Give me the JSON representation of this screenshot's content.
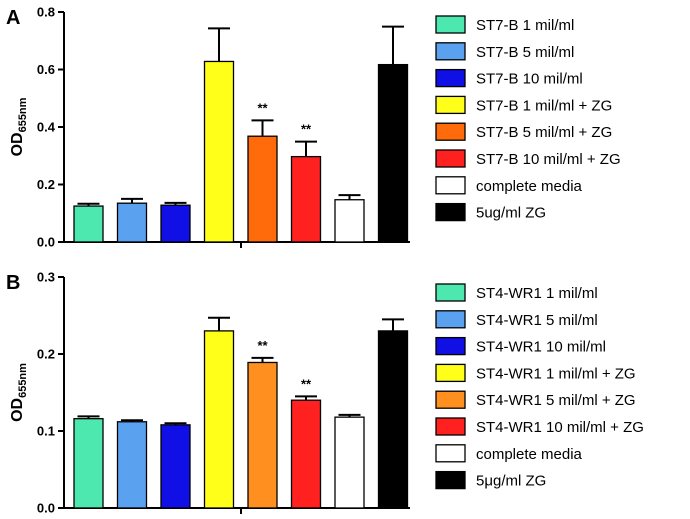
{
  "chart_data": [
    {
      "type": "bar",
      "panel": "A",
      "ylabel": "OD",
      "ylabel_sub": "655nm",
      "ylim": [
        0,
        0.8
      ],
      "yticks": [
        "0.0",
        "0.2",
        "0.4",
        "0.6",
        "0.8"
      ],
      "ytick_values": [
        0,
        0.2,
        0.4,
        0.6,
        0.8
      ],
      "legend_position": "right",
      "bars": [
        {
          "label": "ST7-B 1 mil/ml",
          "value": 0.125,
          "error": 0.008,
          "color": "#4de8b0",
          "sig": ""
        },
        {
          "label": "ST7-B 5 mil/ml",
          "value": 0.135,
          "error": 0.015,
          "color": "#5aa2f0",
          "sig": ""
        },
        {
          "label": "ST7-B 10 mil/ml",
          "value": 0.128,
          "error": 0.008,
          "color": "#1010e6",
          "sig": ""
        },
        {
          "label": "ST7-B 1 mil/ml + ZG",
          "value": 0.628,
          "error": 0.115,
          "color": "#ffff1a",
          "sig": ""
        },
        {
          "label": "ST7-B 5 mil/ml + ZG",
          "value": 0.368,
          "error": 0.055,
          "color": "#ff6a0a",
          "sig": "**"
        },
        {
          "label": "ST7-B 10 mil/ml + ZG",
          "value": 0.297,
          "error": 0.052,
          "color": "#ff2020",
          "sig": "**"
        },
        {
          "label": "complete media",
          "value": 0.147,
          "error": 0.016,
          "color": "#ffffff",
          "sig": ""
        },
        {
          "label": "5ug/ml ZG",
          "value": 0.617,
          "error": 0.132,
          "color": "#000000",
          "sig": ""
        }
      ]
    },
    {
      "type": "bar",
      "panel": "B",
      "ylabel": "OD",
      "ylabel_sub": "655nm",
      "ylim": [
        0,
        0.3
      ],
      "yticks": [
        "0.0",
        "0.1",
        "0.2",
        "0.3"
      ],
      "ytick_values": [
        0,
        0.1,
        0.2,
        0.3
      ],
      "legend_position": "right",
      "bars": [
        {
          "label": "ST4-WR1 1 mil/ml",
          "value": 0.116,
          "error": 0.003,
          "color": "#4de8b0",
          "sig": ""
        },
        {
          "label": "ST4-WR1 5 mil/ml",
          "value": 0.112,
          "error": 0.002,
          "color": "#5aa2f0",
          "sig": ""
        },
        {
          "label": "ST4-WR1 10 mil/ml",
          "value": 0.108,
          "error": 0.002,
          "color": "#1010e6",
          "sig": ""
        },
        {
          "label": "ST4-WR1 1 mil/ml + ZG",
          "value": 0.23,
          "error": 0.017,
          "color": "#ffff1a",
          "sig": ""
        },
        {
          "label": "ST4-WR1 5 mil/ml + ZG",
          "value": 0.189,
          "error": 0.006,
          "color": "#ff9020",
          "sig": "**"
        },
        {
          "label": "ST4-WR1 10 mil/ml + ZG",
          "value": 0.14,
          "error": 0.005,
          "color": "#ff2020",
          "sig": "**"
        },
        {
          "label": "complete media",
          "value": 0.118,
          "error": 0.003,
          "color": "#ffffff",
          "sig": ""
        },
        {
          "label": "5μg/ml ZG",
          "value": 0.23,
          "error": 0.015,
          "color": "#000000",
          "sig": ""
        }
      ]
    }
  ]
}
